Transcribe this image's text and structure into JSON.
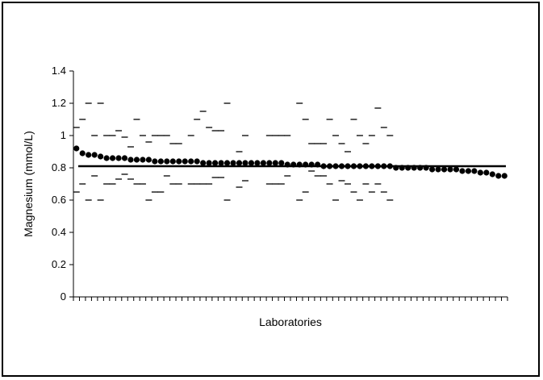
{
  "chart_data": {
    "type": "scatter",
    "xlabel": "Laboratories",
    "ylabel": "Magnesium (mmol/L)",
    "ylim": [
      0,
      1.4
    ],
    "yticks": [
      "0",
      "0.2",
      "0.4",
      "0.6",
      "0.8",
      "1",
      "1.2",
      "1.4"
    ],
    "grid": false,
    "reference_line": 0.81,
    "n_labs": 72,
    "means": [
      0.92,
      0.89,
      0.88,
      0.88,
      0.87,
      0.86,
      0.86,
      0.86,
      0.86,
      0.85,
      0.85,
      0.85,
      0.85,
      0.84,
      0.84,
      0.84,
      0.84,
      0.84,
      0.84,
      0.84,
      0.84,
      0.83,
      0.83,
      0.83,
      0.83,
      0.83,
      0.83,
      0.83,
      0.83,
      0.83,
      0.83,
      0.83,
      0.83,
      0.83,
      0.83,
      0.82,
      0.82,
      0.82,
      0.82,
      0.82,
      0.82,
      0.81,
      0.81,
      0.81,
      0.81,
      0.81,
      0.81,
      0.81,
      0.81,
      0.81,
      0.81,
      0.81,
      0.81,
      0.8,
      0.8,
      0.8,
      0.8,
      0.8,
      0.8,
      0.79,
      0.79,
      0.79,
      0.79,
      0.79,
      0.78,
      0.78,
      0.78,
      0.77,
      0.77,
      0.76,
      0.75,
      0.75
    ],
    "upper": [
      1.05,
      1.1,
      1.2,
      1.0,
      1.2,
      1.0,
      1.0,
      1.03,
      0.99,
      0.93,
      1.1,
      1.0,
      0.96,
      1.0,
      1.0,
      1.0,
      0.95,
      0.95,
      null,
      1.0,
      1.1,
      1.15,
      1.05,
      1.03,
      1.03,
      1.2,
      null,
      0.9,
      1.0,
      null,
      null,
      null,
      1.0,
      1.0,
      1.0,
      1.0,
      null,
      1.2,
      1.1,
      0.95,
      0.95,
      0.95,
      1.1,
      1.0,
      0.95,
      0.9,
      1.1,
      1.0,
      0.95,
      1.0,
      1.17,
      1.05,
      1.0,
      null,
      null,
      null,
      null,
      null,
      null,
      null,
      null,
      null,
      null,
      null,
      null,
      null,
      null,
      null,
      null,
      null,
      null,
      null
    ],
    "lower": [
      0.65,
      0.7,
      0.6,
      0.75,
      0.6,
      0.7,
      0.7,
      0.73,
      0.76,
      0.73,
      0.7,
      0.7,
      0.6,
      0.65,
      0.65,
      0.75,
      0.7,
      0.7,
      null,
      0.7,
      0.7,
      0.7,
      0.7,
      0.74,
      0.74,
      0.6,
      null,
      0.68,
      0.72,
      null,
      null,
      null,
      0.7,
      0.7,
      0.7,
      0.75,
      null,
      0.6,
      0.65,
      0.78,
      0.75,
      0.75,
      0.7,
      0.6,
      0.72,
      0.7,
      0.65,
      0.6,
      0.7,
      0.65,
      0.7,
      0.65,
      0.6,
      null,
      null,
      null,
      null,
      null,
      null,
      null,
      null,
      null,
      null,
      null,
      null,
      null,
      null,
      null,
      null,
      null,
      null,
      null
    ]
  }
}
